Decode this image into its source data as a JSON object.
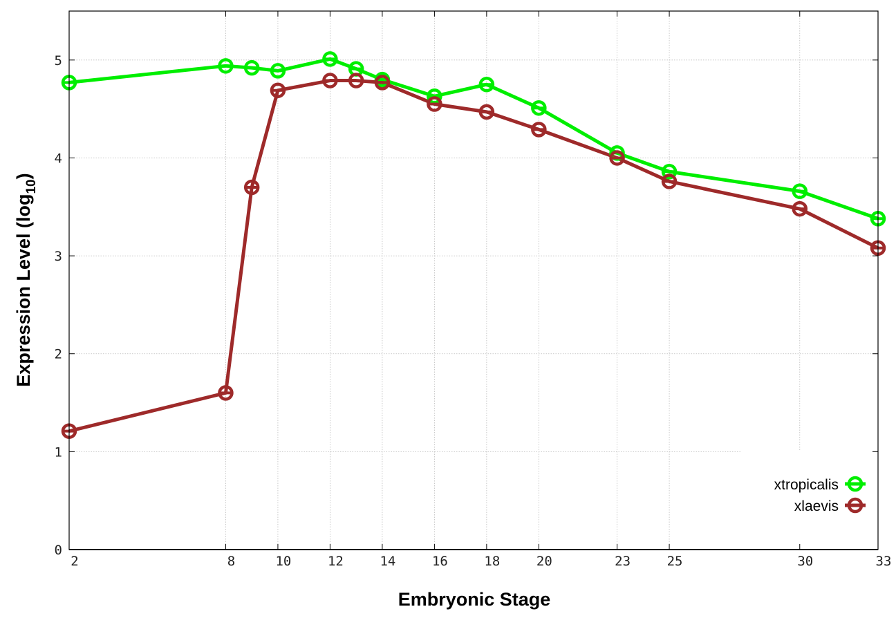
{
  "chart_data": {
    "type": "line",
    "title": "",
    "xlabel": "Embryonic Stage",
    "ylabel_main": "Expression Level (log",
    "ylabel_sub": "10",
    "ylabel_close": ")",
    "xlim": [
      2,
      33
    ],
    "ylim": [
      0,
      5.5
    ],
    "xticks": [
      2,
      8,
      10,
      12,
      14,
      16,
      18,
      20,
      23,
      25,
      30,
      33
    ],
    "yticks": [
      0,
      1,
      2,
      3,
      4,
      5
    ],
    "grid": true,
    "legend_placement": "bottom-right",
    "x": [
      2,
      8,
      9,
      10,
      12,
      13,
      14,
      16,
      18,
      20,
      23,
      25,
      30,
      33
    ],
    "series": [
      {
        "name": "xtropicalis",
        "color": "#00ee00",
        "values": [
          4.77,
          4.94,
          4.92,
          4.89,
          5.01,
          4.91,
          4.8,
          4.63,
          4.75,
          4.51,
          4.05,
          3.86,
          3.66,
          3.38
        ]
      },
      {
        "name": "xlaevis",
        "color": "#9e2a2a",
        "values": [
          1.21,
          1.6,
          3.7,
          4.69,
          4.79,
          4.79,
          4.77,
          4.55,
          4.47,
          4.29,
          4.0,
          3.76,
          3.48,
          3.08
        ]
      }
    ]
  }
}
